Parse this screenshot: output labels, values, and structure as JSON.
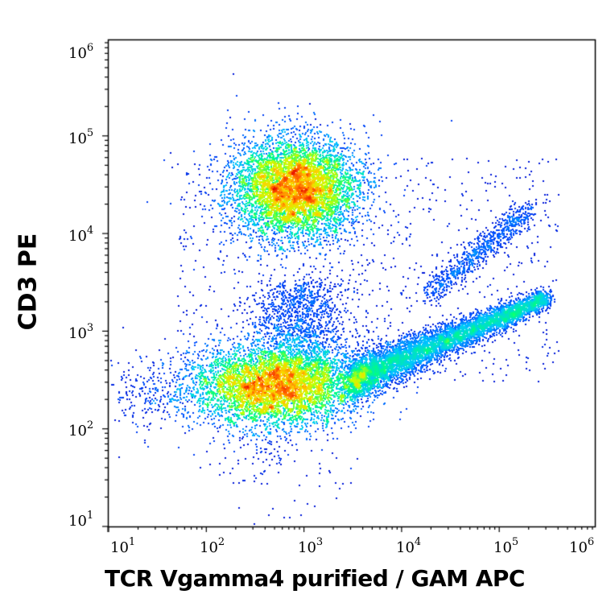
{
  "chart_data": {
    "type": "scatter",
    "subtype": "flow-cytometry-density-dot-plot",
    "title": "",
    "xlabel": "TCR Vgamma4 purified / GAM APC",
    "ylabel": "CD3 PE",
    "xscale": "log",
    "yscale": "log",
    "xlim": [
      7,
      1100000
    ],
    "ylim": [
      9,
      1000000
    ],
    "x_tick_labels": [
      "10^1",
      "10^2",
      "10^3",
      "10^4",
      "10^5",
      "10^6"
    ],
    "y_tick_labels": [
      "10^1",
      "10^2",
      "10^3",
      "10^4",
      "10^5",
      "10^6"
    ],
    "grid": false,
    "legend": null,
    "colormap": [
      "#0000c8",
      "#0050ff",
      "#00c8ff",
      "#00ff80",
      "#c8ff00",
      "#ffd000",
      "#ff6000",
      "#e00000"
    ],
    "populations": [
      {
        "name": "CD3 high / Vgamma4 negative",
        "center_x": 800,
        "center_y": 30000,
        "x_range": [
          100,
          8000
        ],
        "y_range": [
          4000,
          200000
        ],
        "peak_density": "high"
      },
      {
        "name": "CD3 low / Vgamma4 negative",
        "center_x": 500,
        "center_y": 280,
        "x_range": [
          10,
          20000
        ],
        "y_range": [
          15,
          1500
        ],
        "peak_density": "high"
      },
      {
        "name": "diagonal tail (low CD3)",
        "from_x": 3000,
        "from_y": 300,
        "to_x": 300000,
        "to_y": 2500,
        "peak_density": "low"
      },
      {
        "name": "CD3+ Vgamma4+ cluster",
        "center_x": 100000,
        "center_y": 12000,
        "x_range": [
          20000,
          300000
        ],
        "y_range": [
          3000,
          30000
        ],
        "peak_density": "low"
      }
    ]
  },
  "axes": {
    "x": {
      "label": "TCR Vgamma4 purified / GAM APC",
      "ticks": [
        {
          "base": "10",
          "exp": "1"
        },
        {
          "base": "10",
          "exp": "2"
        },
        {
          "base": "10",
          "exp": "3"
        },
        {
          "base": "10",
          "exp": "4"
        },
        {
          "base": "10",
          "exp": "5"
        },
        {
          "base": "10",
          "exp": "6"
        }
      ]
    },
    "y": {
      "label": "CD3 PE",
      "ticks": [
        {
          "base": "10",
          "exp": "1"
        },
        {
          "base": "10",
          "exp": "2"
        },
        {
          "base": "10",
          "exp": "3"
        },
        {
          "base": "10",
          "exp": "4"
        },
        {
          "base": "10",
          "exp": "5"
        },
        {
          "base": "10",
          "exp": "6"
        }
      ]
    }
  }
}
